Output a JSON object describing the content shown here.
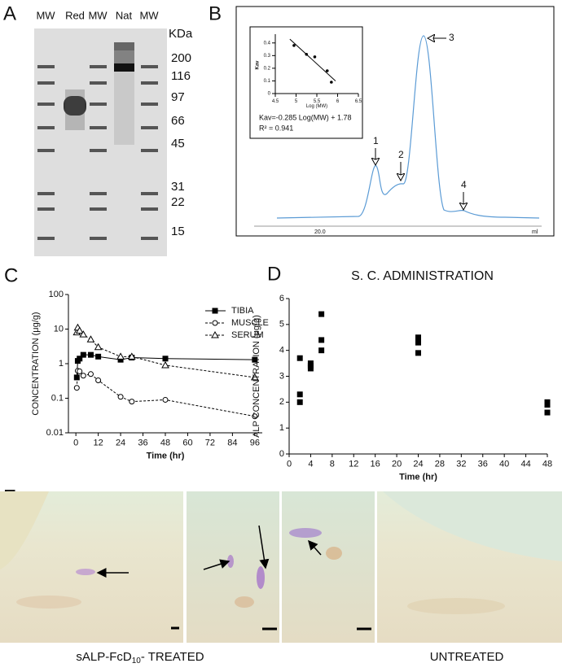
{
  "figure": {
    "panel_labels": [
      "A",
      "B",
      "C",
      "D",
      "E"
    ],
    "gel": {
      "lanes": [
        "MW",
        "Red",
        "MW",
        "Nat",
        "MW"
      ],
      "unit": "KDa",
      "markers": [
        200,
        116,
        97,
        66,
        45,
        31,
        22,
        15
      ]
    },
    "chromatogram": {
      "peaks": [
        "1",
        "2",
        "3",
        "4"
      ],
      "x_labels": [
        "20.0",
        "ml"
      ],
      "inset_equation": "Kav=-0.285 Log(MW) + 1.78",
      "inset_r2": "R² = 0.941"
    },
    "histology": {
      "treated": {
        "prefix": "sALP-FcD",
        "subscript": "10",
        "suffix": "- TREATED"
      },
      "untreated": "UNTREATED"
    }
  },
  "chart_data": [
    {
      "type": "scatter",
      "fit_line": true,
      "y_label": "Kav",
      "x_label": "Log (MW)",
      "x": [
        4.95,
        5.25,
        5.45,
        5.75,
        5.85
      ],
      "values": [
        0.38,
        0.31,
        0.29,
        0.18,
        0.09
      ],
      "color": "#000000",
      "xlim": [
        4.5,
        6.5
      ],
      "xticks": [
        4.5,
        5,
        5.5,
        6,
        6.5
      ],
      "ylim": [
        0,
        0.45
      ],
      "yticks": [
        0,
        0.1,
        0.2,
        0.3,
        0.4
      ],
      "marker": "dot"
    },
    {
      "type": "line",
      "log_y": true,
      "x_label": "Time (hr)",
      "y_label": "CONCENTRATION (μg/g)",
      "legend": "top-right",
      "x": [
        0.5,
        1,
        2,
        4,
        8,
        12,
        24,
        30,
        48,
        96
      ],
      "series": [
        {
          "name": "TIBIA",
          "color": "#000000",
          "marker": "square",
          "dash": false,
          "values": [
            0.4,
            1.2,
            1.4,
            1.8,
            1.8,
            1.6,
            1.3,
            1.5,
            1.4,
            1.3
          ]
        },
        {
          "name": "MUSCLE",
          "color": "#000000",
          "marker": "circle",
          "dash": true,
          "values": [
            0.2,
            0.62,
            0.6,
            0.45,
            0.5,
            0.33,
            0.11,
            0.08,
            0.09,
            0.03
          ]
        },
        {
          "name": "SERUM",
          "color": "#000000",
          "marker": "triangle",
          "dash": true,
          "values": [
            8,
            11,
            9,
            7,
            5,
            3,
            1.6,
            1.6,
            0.9,
            0.4
          ]
        }
      ],
      "xlim": [
        -4,
        100
      ],
      "xticks": [
        0,
        12,
        24,
        36,
        48,
        60,
        72,
        84,
        96
      ],
      "ylim": [
        0.01,
        100
      ],
      "yticks": [
        0.01,
        0.1,
        1,
        10,
        100
      ]
    },
    {
      "type": "scatter",
      "title": "S. C. ADMINISTRATION",
      "x_label": "Time (hr)",
      "y_label": "ALP CONCENTRATION (μg/g)",
      "x": [
        2,
        2,
        2,
        4,
        4,
        4,
        6,
        6,
        6,
        24,
        24,
        24,
        48,
        48,
        48
      ],
      "values": [
        3.7,
        2.3,
        2.0,
        3.5,
        3.4,
        3.3,
        5.4,
        4.4,
        4.0,
        4.5,
        4.3,
        3.9,
        2.0,
        1.9,
        1.6
      ],
      "color": "#000000",
      "marker": "square",
      "xlim": [
        0,
        48
      ],
      "xticks": [
        0,
        4,
        8,
        12,
        16,
        20,
        24,
        28,
        32,
        36,
        40,
        44,
        48
      ],
      "ylim": [
        0,
        6
      ],
      "yticks": [
        0,
        1,
        2,
        3,
        4,
        5,
        6
      ]
    }
  ]
}
